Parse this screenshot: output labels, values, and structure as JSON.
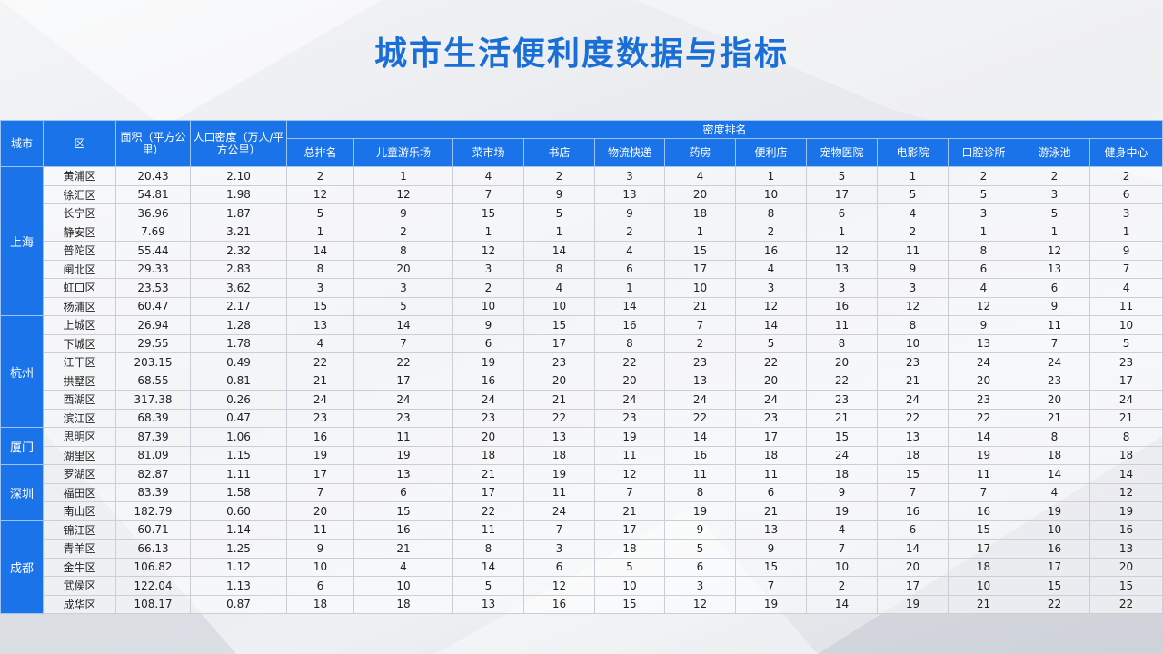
{
  "title": "城市生活便利度数据与指标",
  "table": {
    "headers": {
      "city": "城市",
      "district": "区",
      "area": "面积（平方公里）",
      "density": "人口密度（万人/平方公里）",
      "group": "密度排名",
      "ranks": [
        "总排名",
        "儿童游乐场",
        "菜市场",
        "书店",
        "物流快递",
        "药房",
        "便利店",
        "宠物医院",
        "电影院",
        "口腔诊所",
        "游泳池",
        "健身中心"
      ]
    },
    "groups": [
      {
        "city": "上海",
        "rows": [
          {
            "district": "黄浦区",
            "area": "20.43",
            "density": "2.10",
            "ranks": [
              "2",
              "1",
              "4",
              "2",
              "3",
              "4",
              "1",
              "5",
              "1",
              "2",
              "2",
              "2"
            ]
          },
          {
            "district": "徐汇区",
            "area": "54.81",
            "density": "1.98",
            "ranks": [
              "12",
              "12",
              "7",
              "9",
              "13",
              "20",
              "10",
              "17",
              "5",
              "5",
              "3",
              "6"
            ]
          },
          {
            "district": "长宁区",
            "area": "36.96",
            "density": "1.87",
            "ranks": [
              "5",
              "9",
              "15",
              "5",
              "9",
              "18",
              "8",
              "6",
              "4",
              "3",
              "5",
              "3"
            ]
          },
          {
            "district": "静安区",
            "area": "7.69",
            "density": "3.21",
            "ranks": [
              "1",
              "2",
              "1",
              "1",
              "2",
              "1",
              "2",
              "1",
              "2",
              "1",
              "1",
              "1"
            ]
          },
          {
            "district": "普陀区",
            "area": "55.44",
            "density": "2.32",
            "ranks": [
              "14",
              "8",
              "12",
              "14",
              "4",
              "15",
              "16",
              "12",
              "11",
              "8",
              "12",
              "9"
            ]
          },
          {
            "district": "闸北区",
            "area": "29.33",
            "density": "2.83",
            "ranks": [
              "8",
              "20",
              "3",
              "8",
              "6",
              "17",
              "4",
              "13",
              "9",
              "6",
              "13",
              "7"
            ]
          },
          {
            "district": "虹口区",
            "area": "23.53",
            "density": "3.62",
            "ranks": [
              "3",
              "3",
              "2",
              "4",
              "1",
              "10",
              "3",
              "3",
              "3",
              "4",
              "6",
              "4"
            ]
          },
          {
            "district": "杨浦区",
            "area": "60.47",
            "density": "2.17",
            "ranks": [
              "15",
              "5",
              "10",
              "10",
              "14",
              "21",
              "12",
              "16",
              "12",
              "12",
              "9",
              "11"
            ]
          }
        ]
      },
      {
        "city": "杭州",
        "rows": [
          {
            "district": "上城区",
            "area": "26.94",
            "density": "1.28",
            "ranks": [
              "13",
              "14",
              "9",
              "15",
              "16",
              "7",
              "14",
              "11",
              "8",
              "9",
              "11",
              "10"
            ]
          },
          {
            "district": "下城区",
            "area": "29.55",
            "density": "1.78",
            "ranks": [
              "4",
              "7",
              "6",
              "17",
              "8",
              "2",
              "5",
              "8",
              "10",
              "13",
              "7",
              "5"
            ]
          },
          {
            "district": "江干区",
            "area": "203.15",
            "density": "0.49",
            "ranks": [
              "22",
              "22",
              "19",
              "23",
              "22",
              "23",
              "22",
              "20",
              "23",
              "24",
              "24",
              "23"
            ]
          },
          {
            "district": "拱墅区",
            "area": "68.55",
            "density": "0.81",
            "ranks": [
              "21",
              "17",
              "16",
              "20",
              "20",
              "13",
              "20",
              "22",
              "21",
              "20",
              "23",
              "17"
            ]
          },
          {
            "district": "西湖区",
            "area": "317.38",
            "density": "0.26",
            "ranks": [
              "24",
              "24",
              "24",
              "21",
              "24",
              "24",
              "24",
              "23",
              "24",
              "23",
              "20",
              "24"
            ]
          },
          {
            "district": "滨江区",
            "area": "68.39",
            "density": "0.47",
            "ranks": [
              "23",
              "23",
              "23",
              "22",
              "23",
              "22",
              "23",
              "21",
              "22",
              "22",
              "21",
              "21"
            ]
          }
        ]
      },
      {
        "city": "厦门",
        "rows": [
          {
            "district": "思明区",
            "area": "87.39",
            "density": "1.06",
            "ranks": [
              "16",
              "11",
              "20",
              "13",
              "19",
              "14",
              "17",
              "15",
              "13",
              "14",
              "8",
              "8"
            ]
          },
          {
            "district": "湖里区",
            "area": "81.09",
            "density": "1.15",
            "ranks": [
              "19",
              "19",
              "18",
              "18",
              "11",
              "16",
              "18",
              "24",
              "18",
              "19",
              "18",
              "18"
            ]
          }
        ]
      },
      {
        "city": "深圳",
        "rows": [
          {
            "district": "罗湖区",
            "area": "82.87",
            "density": "1.11",
            "ranks": [
              "17",
              "13",
              "21",
              "19",
              "12",
              "11",
              "11",
              "18",
              "15",
              "11",
              "14",
              "14"
            ]
          },
          {
            "district": "福田区",
            "area": "83.39",
            "density": "1.58",
            "ranks": [
              "7",
              "6",
              "17",
              "11",
              "7",
              "8",
              "6",
              "9",
              "7",
              "7",
              "4",
              "12"
            ]
          },
          {
            "district": "南山区",
            "area": "182.79",
            "density": "0.60",
            "ranks": [
              "20",
              "15",
              "22",
              "24",
              "21",
              "19",
              "21",
              "19",
              "16",
              "16",
              "19",
              "19"
            ]
          }
        ]
      },
      {
        "city": "成都",
        "rows": [
          {
            "district": "锦江区",
            "area": "60.71",
            "density": "1.14",
            "ranks": [
              "11",
              "16",
              "11",
              "7",
              "17",
              "9",
              "13",
              "4",
              "6",
              "15",
              "10",
              "16"
            ]
          },
          {
            "district": "青羊区",
            "area": "66.13",
            "density": "1.25",
            "ranks": [
              "9",
              "21",
              "8",
              "3",
              "18",
              "5",
              "9",
              "7",
              "14",
              "17",
              "16",
              "13"
            ]
          },
          {
            "district": "金牛区",
            "area": "106.82",
            "density": "1.12",
            "ranks": [
              "10",
              "4",
              "14",
              "6",
              "5",
              "6",
              "15",
              "10",
              "20",
              "18",
              "17",
              "20"
            ]
          },
          {
            "district": "武侯区",
            "area": "122.04",
            "density": "1.13",
            "ranks": [
              "6",
              "10",
              "5",
              "12",
              "10",
              "3",
              "7",
              "2",
              "17",
              "10",
              "15",
              "15"
            ]
          },
          {
            "district": "成华区",
            "area": "108.17",
            "density": "0.87",
            "ranks": [
              "18",
              "18",
              "13",
              "16",
              "15",
              "12",
              "19",
              "14",
              "19",
              "21",
              "22",
              "22"
            ]
          }
        ]
      }
    ]
  }
}
